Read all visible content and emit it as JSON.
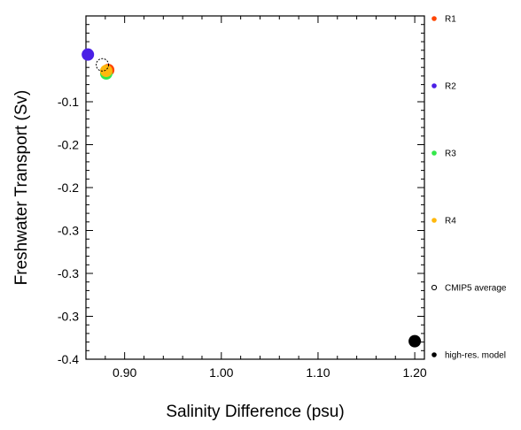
{
  "chart_data": {
    "type": "scatter",
    "title": "",
    "xlabel": "Salinity Difference (psu)",
    "ylabel": "Freshwater Transport (Sv)",
    "xlim": [
      0.86,
      1.21
    ],
    "ylim": [
      -0.4,
      0.0
    ],
    "x_ticks": [
      0.9,
      1.0,
      1.1,
      1.2
    ],
    "x_tick_labels": [
      "0.90",
      "1.00",
      "1.10",
      "1.20"
    ],
    "y_ticks": [
      -0.1,
      -0.15,
      -0.2,
      -0.25,
      -0.3,
      -0.35,
      -0.4
    ],
    "y_tick_labels": [
      "-0.1",
      "-0.2",
      "-0.2",
      "-0.3",
      "-0.3",
      "-0.3",
      "-0.4"
    ],
    "grid": false,
    "legend_position": "right",
    "series": [
      {
        "name": "R1",
        "color": "#ff4500",
        "marker": "filled-circle",
        "points": [
          {
            "x": 0.883,
            "y": -0.063
          }
        ]
      },
      {
        "name": "R2",
        "color": "#4a1fe6",
        "marker": "filled-circle",
        "points": [
          {
            "x": 0.862,
            "y": -0.045
          }
        ]
      },
      {
        "name": "R3",
        "color": "#33e84a",
        "marker": "filled-circle",
        "points": [
          {
            "x": 0.881,
            "y": -0.067
          }
        ]
      },
      {
        "name": "R4",
        "color": "#ffb80d",
        "marker": "filled-circle",
        "points": [
          {
            "x": 0.881,
            "y": -0.064
          }
        ]
      },
      {
        "name": "CMIP5 average",
        "color": "#000000",
        "marker": "open-circle",
        "points": [
          {
            "x": 0.877,
            "y": -0.057
          }
        ]
      },
      {
        "name": "high-res. model",
        "color": "#000000",
        "marker": "filled-circle",
        "points": [
          {
            "x": 1.2,
            "y": -0.379
          }
        ]
      }
    ]
  }
}
